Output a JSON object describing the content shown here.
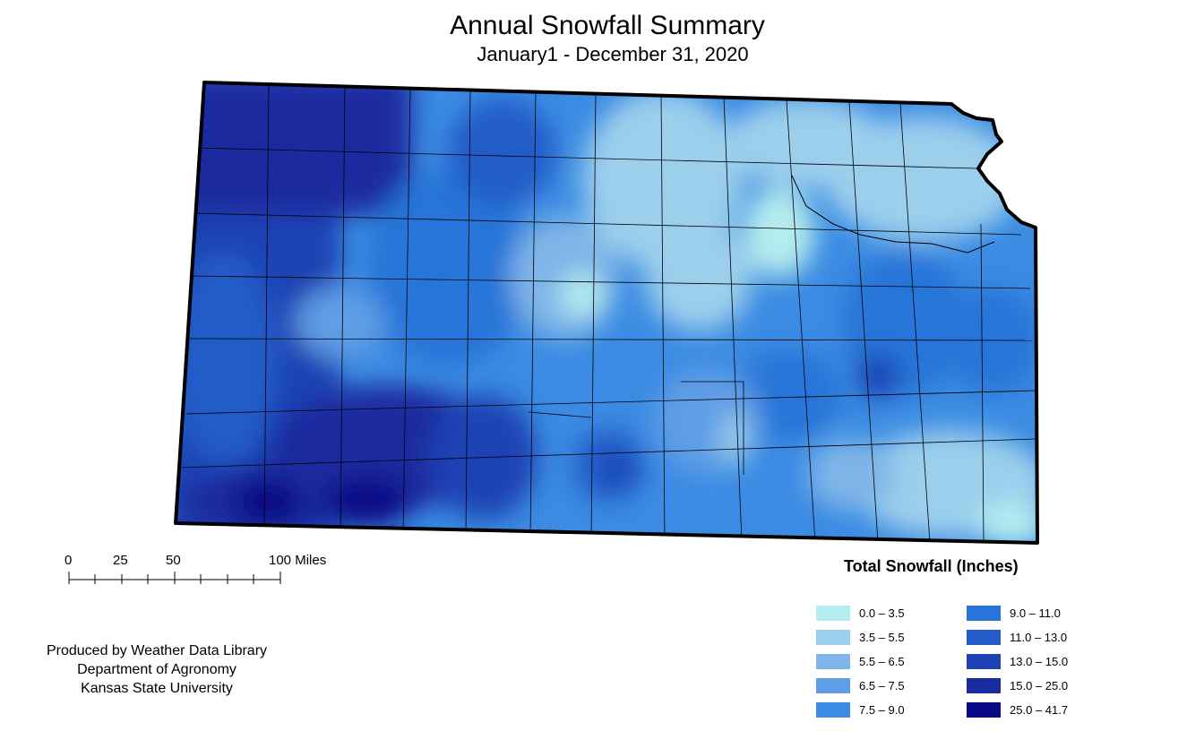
{
  "title": "Annual Snowfall Summary",
  "subtitle": "January1 - December 31, 2020",
  "scale_bar": {
    "labels": [
      "0",
      "25",
      "50",
      "100 Miles"
    ]
  },
  "credits": [
    "Produced by Weather Data Library",
    "Department of Agronomy",
    "Kansas State University"
  ],
  "legend": {
    "title": "Total Snowfall (Inches)",
    "items": [
      {
        "label": "0.0 – 3.5",
        "color": "#b5ecee"
      },
      {
        "label": "3.5 – 5.5",
        "color": "#9ccfec"
      },
      {
        "label": "5.5 – 6.5",
        "color": "#7fb5e8"
      },
      {
        "label": "6.5 – 7.5",
        "color": "#5f9ee6"
      },
      {
        "label": "7.5 – 9.0",
        "color": "#3b8be3"
      },
      {
        "label": "9.0 – 11.0",
        "color": "#2874d8"
      },
      {
        "label": "11.0 – 13.0",
        "color": "#235cc8"
      },
      {
        "label": "13.0 – 15.0",
        "color": "#1e42b4"
      },
      {
        "label": "15.0 – 25.0",
        "color": "#1a2aa0"
      },
      {
        "label": "25.0 – 41.7",
        "color": "#0a0a88"
      }
    ]
  }
}
